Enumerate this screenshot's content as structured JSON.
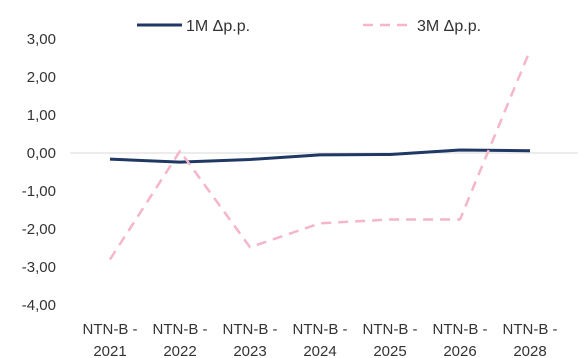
{
  "chart_data": {
    "type": "line",
    "categories": [
      [
        "NTN-B -",
        "2021"
      ],
      [
        "NTN-B -",
        "2022"
      ],
      [
        "NTN-B -",
        "2023"
      ],
      [
        "NTN-B -",
        "2024"
      ],
      [
        "NTN-B -",
        "2025"
      ],
      [
        "NTN-B -",
        "2026"
      ],
      [
        "NTN-B -",
        "2028"
      ]
    ],
    "series": [
      {
        "name": "1M Δp.p.",
        "values": [
          -0.16,
          -0.24,
          -0.17,
          -0.05,
          -0.04,
          0.08,
          0.06
        ],
        "color": "#1f3864",
        "style": "solid"
      },
      {
        "name": "3M Δp.p.",
        "values": [
          -2.8,
          0.05,
          -2.48,
          -1.85,
          -1.75,
          -1.75,
          2.7
        ],
        "color": "#f4b6c8",
        "style": "dashed"
      }
    ],
    "ylim": [
      -4,
      3
    ],
    "yticks": [
      "3,00",
      "2,00",
      "1,00",
      "0,00",
      "-1,00",
      "-2,00",
      "-3,00",
      "-4,00"
    ],
    "ytick_values": [
      3,
      2,
      1,
      0,
      -1,
      -2,
      -3,
      -4
    ],
    "legend_position": "top",
    "zero_line": true,
    "grid": false
  }
}
